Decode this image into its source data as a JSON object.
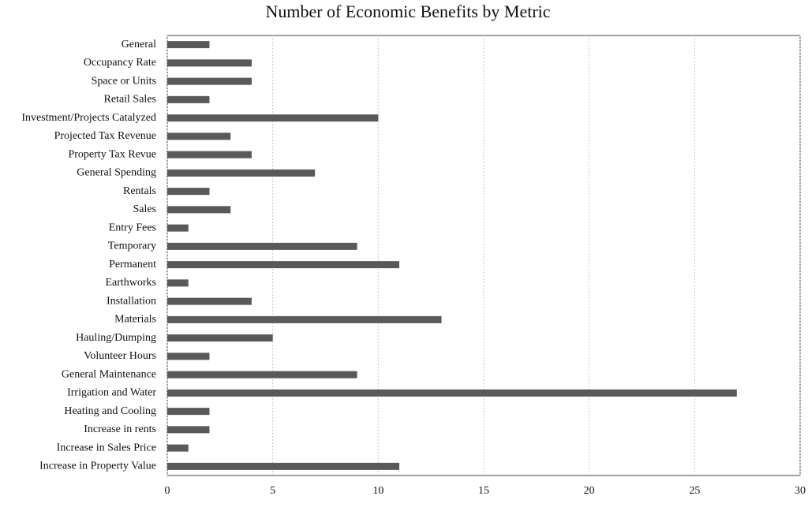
{
  "chart_data": {
    "type": "barh",
    "title": "Number of Economic Benefits by Metric",
    "categories": [
      "General",
      "Occupancy Rate",
      "Space or Units",
      "Retail Sales",
      "Investment/Projects Catalyzed",
      "Projected Tax Revenue",
      "Property Tax Revue",
      "General Spending",
      "Rentals",
      "Sales",
      "Entry Fees",
      "Temporary",
      "Permanent",
      "Earthworks",
      "Installation",
      "Materials",
      "Hauling/Dumping",
      "Volunteer Hours",
      "General Maintenance",
      "Irrigation and Water",
      "Heating and Cooling",
      "Increase in rents",
      "Increase in Sales Price",
      "Increase in Property Value"
    ],
    "values": [
      2,
      4,
      4,
      2,
      10,
      3,
      4,
      7,
      2,
      3,
      1,
      9,
      11,
      1,
      4,
      13,
      5,
      2,
      9,
      27,
      2,
      2,
      1,
      11
    ],
    "color": "#595959",
    "xlim": [
      0,
      30
    ],
    "xticks": [
      0,
      5,
      10,
      15,
      20,
      25,
      30
    ],
    "grid": true
  }
}
